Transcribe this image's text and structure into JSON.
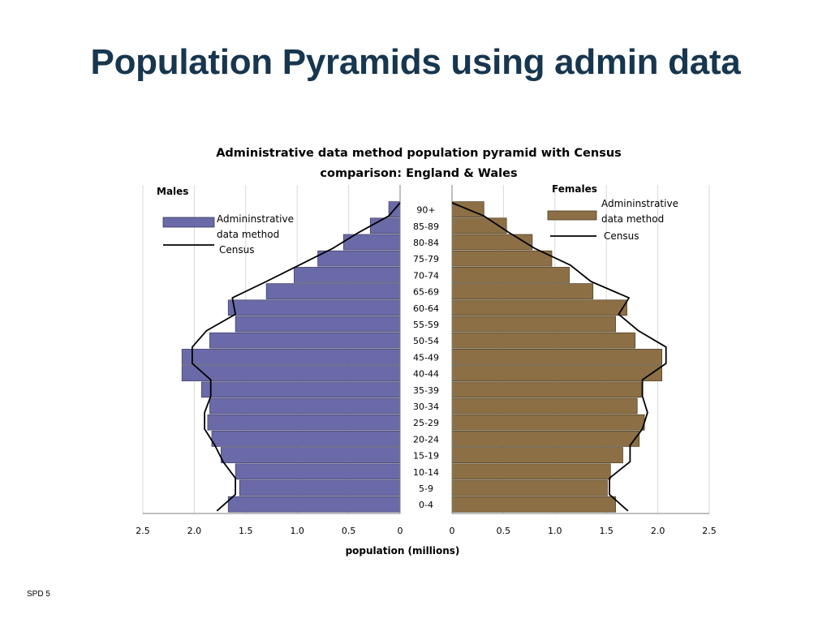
{
  "slide": {
    "title": "Population Pyramids using admin data",
    "footer": "SPD 5"
  },
  "chart_data": {
    "type": "bar",
    "subtype": "population-pyramid",
    "title_line1": "Administrative data method population pyramid with Census",
    "title_line2": "comparison: England & Wales",
    "xlabel": "population (millions)",
    "xlim": [
      0,
      2.5
    ],
    "x_ticks": [
      0,
      0.5,
      1.0,
      1.5,
      2.0,
      2.5
    ],
    "x_tick_labels": [
      "0",
      "0.5",
      "1.0",
      "1.5",
      "2.0",
      "2.5"
    ],
    "grid": true,
    "panel_labels": {
      "left": "Males",
      "right": "Females"
    },
    "categories": [
      "0-4",
      "5-9",
      "10-14",
      "15-19",
      "20-24",
      "25-29",
      "30-34",
      "35-39",
      "40-44",
      "45-49",
      "50-54",
      "55-59",
      "60-64",
      "65-69",
      "70-74",
      "75-79",
      "80-84",
      "85-89",
      "90+"
    ],
    "legend": {
      "placement": "top-inside",
      "bar_label": "Admininstrative data method",
      "line_label": "Census"
    },
    "males": {
      "admin": [
        1.67,
        1.56,
        1.6,
        1.74,
        1.83,
        1.87,
        1.85,
        1.93,
        2.12,
        2.12,
        1.85,
        1.6,
        1.67,
        1.3,
        1.03,
        0.8,
        0.55,
        0.29,
        0.11
      ],
      "census": [
        1.78,
        1.6,
        1.6,
        1.72,
        1.8,
        1.9,
        1.9,
        1.84,
        1.84,
        2.02,
        2.02,
        1.88,
        1.6,
        1.63,
        1.3,
        0.98,
        0.66,
        0.4,
        0.11
      ]
    },
    "females": {
      "admin": [
        1.59,
        1.51,
        1.54,
        1.66,
        1.82,
        1.87,
        1.8,
        1.84,
        2.04,
        2.04,
        1.78,
        1.59,
        1.7,
        1.37,
        1.14,
        0.97,
        0.78,
        0.53,
        0.31
      ],
      "census": [
        1.71,
        1.53,
        1.53,
        1.73,
        1.73,
        1.85,
        1.9,
        1.85,
        1.85,
        2.08,
        2.08,
        1.81,
        1.62,
        1.72,
        1.35,
        1.15,
        0.81,
        0.55,
        0.31
      ]
    },
    "colors": {
      "male_bar": "#6b6aa8",
      "female_bar": "#8c6f45",
      "census_line": "#000000",
      "grid": "#d9d9d9"
    }
  }
}
